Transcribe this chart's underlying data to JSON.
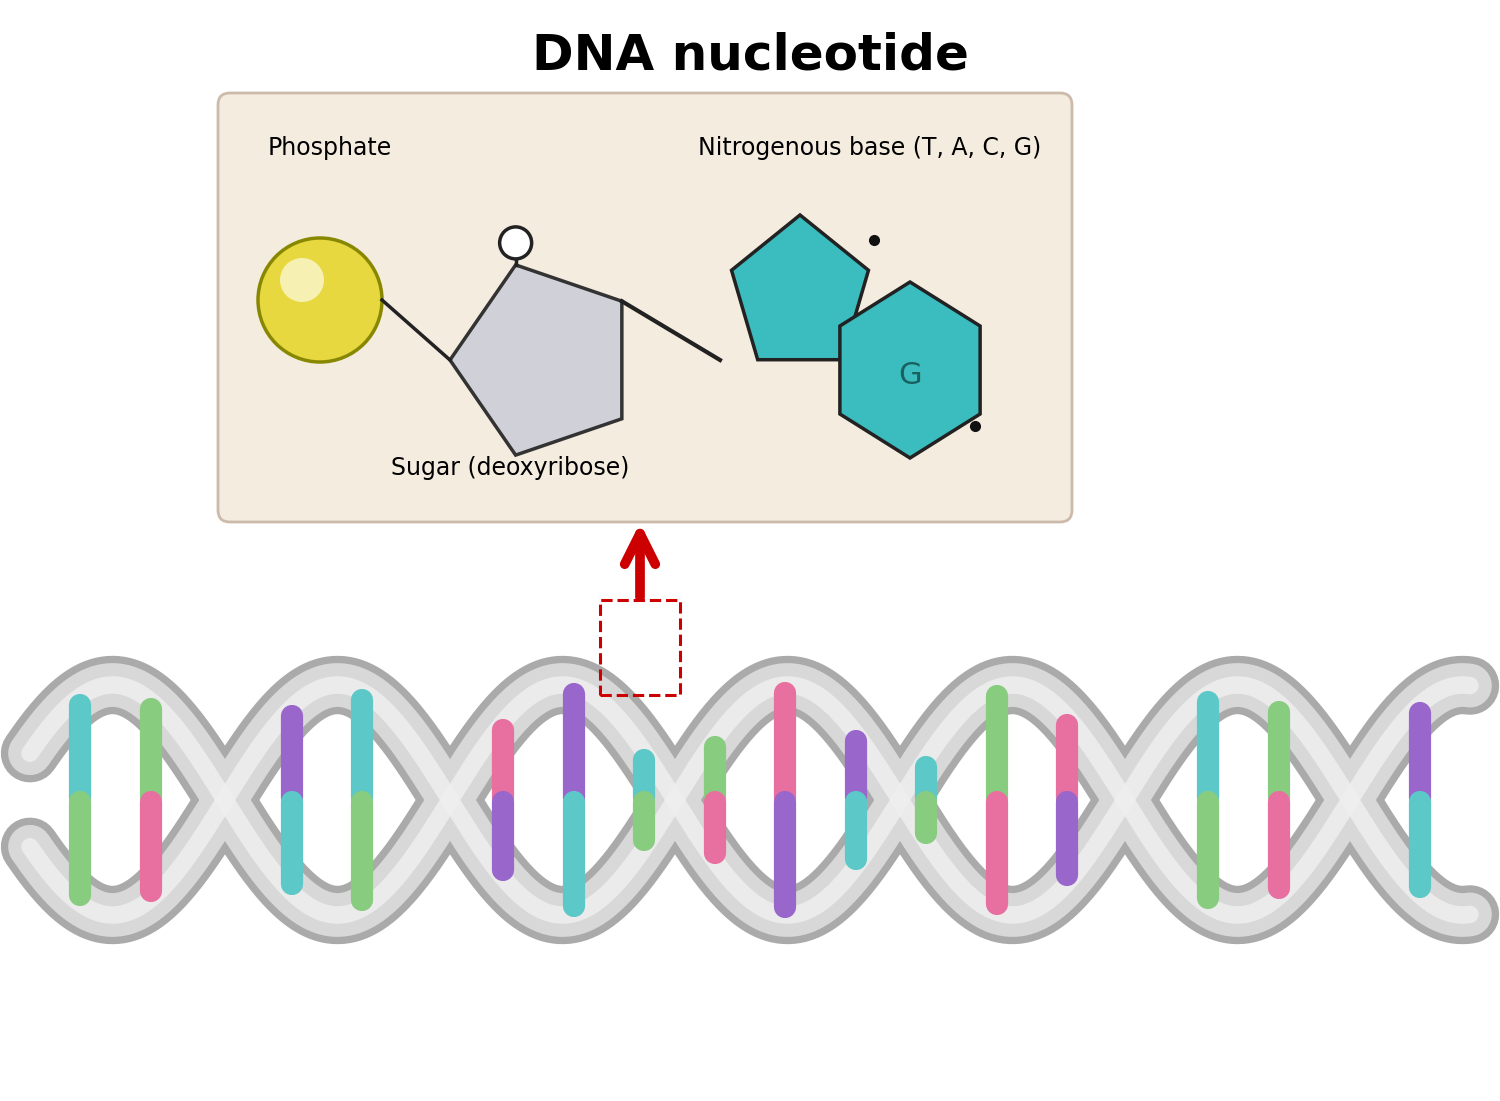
{
  "title": "DNA nucleotide",
  "title_fontsize": 36,
  "title_fontweight": "bold",
  "bg_color": "#ffffff",
  "box_color": "#f5ece0",
  "box_edge_color": "#ccbbaa",
  "phosphate_color": "#e8d840",
  "phosphate_edge": "#888800",
  "sugar_color": "#d0d0d8",
  "sugar_edge_color": "#333333",
  "base_color": "#3bbcbe",
  "base_edge_color": "#222222",
  "label_phosphate": "Phosphate",
  "label_sugar": "Sugar (deoxyribose)",
  "label_base": "Nitrogenous base (T, A, C, G)",
  "label_G": "G",
  "arrow_color": "#cc0000",
  "dna_backbone_color": "#c8c8c8",
  "dna_base_colors": [
    "#5dc8c8",
    "#88cc80",
    "#e870a0",
    "#9966cc"
  ],
  "dashed_box_color": "#cc0000",
  "bond_line_color": "#222222"
}
